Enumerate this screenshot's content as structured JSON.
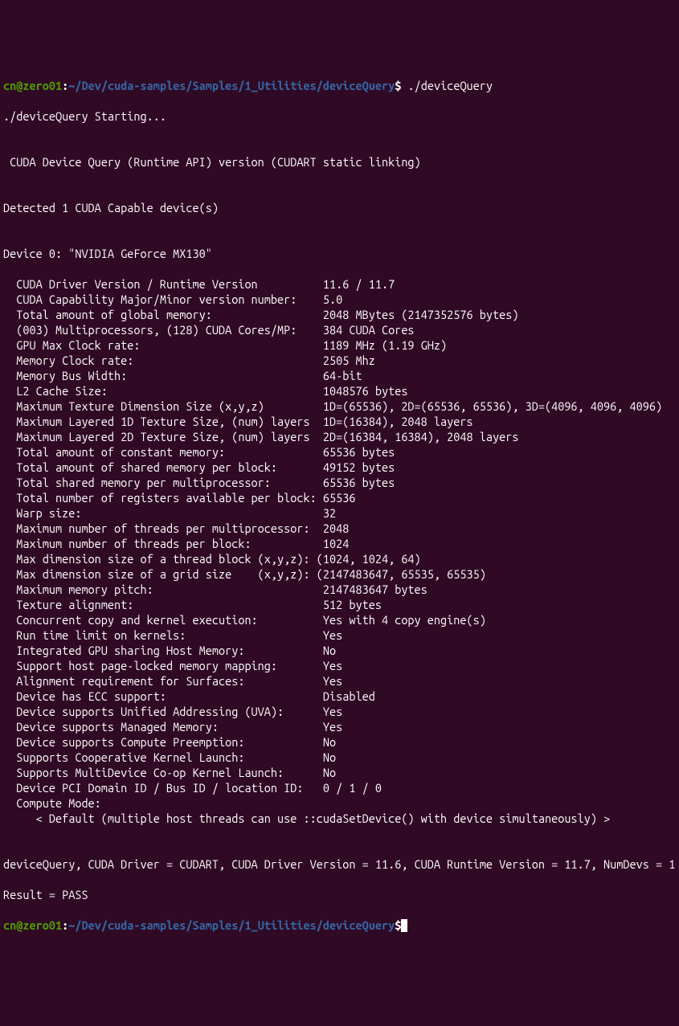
{
  "colors": {
    "bg": "#300a24",
    "text": "#ffffff",
    "user_host": "#4e9a06",
    "path": "#3465a4"
  },
  "prompt": {
    "user": "cn",
    "at": "@",
    "host": "zero01",
    "colon": ":",
    "path": "~/Dev/cuda-samples/Samples/1_Utilities/deviceQuery",
    "dollar": "$",
    "command": " ./deviceQuery"
  },
  "output": {
    "starting": "./deviceQuery Starting...",
    "blank": "",
    "header": " CUDA Device Query (Runtime API) version (CUDART static linking)",
    "detected": "Detected 1 CUDA Capable device(s)",
    "device_line": "Device 0: \"NVIDIA GeForce MX130\"",
    "props": [
      "  CUDA Driver Version / Runtime Version          11.6 / 11.7",
      "  CUDA Capability Major/Minor version number:    5.0",
      "  Total amount of global memory:                 2048 MBytes (2147352576 bytes)",
      "  (003) Multiprocessors, (128) CUDA Cores/MP:    384 CUDA Cores",
      "  GPU Max Clock rate:                            1189 MHz (1.19 GHz)",
      "  Memory Clock rate:                             2505 Mhz",
      "  Memory Bus Width:                              64-bit",
      "  L2 Cache Size:                                 1048576 bytes",
      "  Maximum Texture Dimension Size (x,y,z)         1D=(65536), 2D=(65536, 65536), 3D=(4096, 4096, 4096)",
      "  Maximum Layered 1D Texture Size, (num) layers  1D=(16384), 2048 layers",
      "  Maximum Layered 2D Texture Size, (num) layers  2D=(16384, 16384), 2048 layers",
      "  Total amount of constant memory:               65536 bytes",
      "  Total amount of shared memory per block:       49152 bytes",
      "  Total shared memory per multiprocessor:        65536 bytes",
      "  Total number of registers available per block: 65536",
      "  Warp size:                                     32",
      "  Maximum number of threads per multiprocessor:  2048",
      "  Maximum number of threads per block:           1024",
      "  Max dimension size of a thread block (x,y,z): (1024, 1024, 64)",
      "  Max dimension size of a grid size    (x,y,z): (2147483647, 65535, 65535)",
      "  Maximum memory pitch:                          2147483647 bytes",
      "  Texture alignment:                             512 bytes",
      "  Concurrent copy and kernel execution:          Yes with 4 copy engine(s)",
      "  Run time limit on kernels:                     Yes",
      "  Integrated GPU sharing Host Memory:            No",
      "  Support host page-locked memory mapping:       Yes",
      "  Alignment requirement for Surfaces:            Yes",
      "  Device has ECC support:                        Disabled",
      "  Device supports Unified Addressing (UVA):      Yes",
      "  Device supports Managed Memory:                Yes",
      "  Device supports Compute Preemption:            No",
      "  Supports Cooperative Kernel Launch:            No",
      "  Supports MultiDevice Co-op Kernel Launch:      No",
      "  Device PCI Domain ID / Bus ID / location ID:   0 / 1 / 0",
      "  Compute Mode:",
      "     < Default (multiple host threads can use ::cudaSetDevice() with device simultaneously) >"
    ],
    "summary": "deviceQuery, CUDA Driver = CUDART, CUDA Driver Version = 11.6, CUDA Runtime Version = 11.7, NumDevs = 1",
    "result": "Result = PASS"
  },
  "prompt2": {
    "user": "cn",
    "at": "@",
    "host": "zero01",
    "colon": ":",
    "path": "~/Dev/cuda-samples/Samples/1_Utilities/deviceQuery",
    "dollar": "$"
  }
}
